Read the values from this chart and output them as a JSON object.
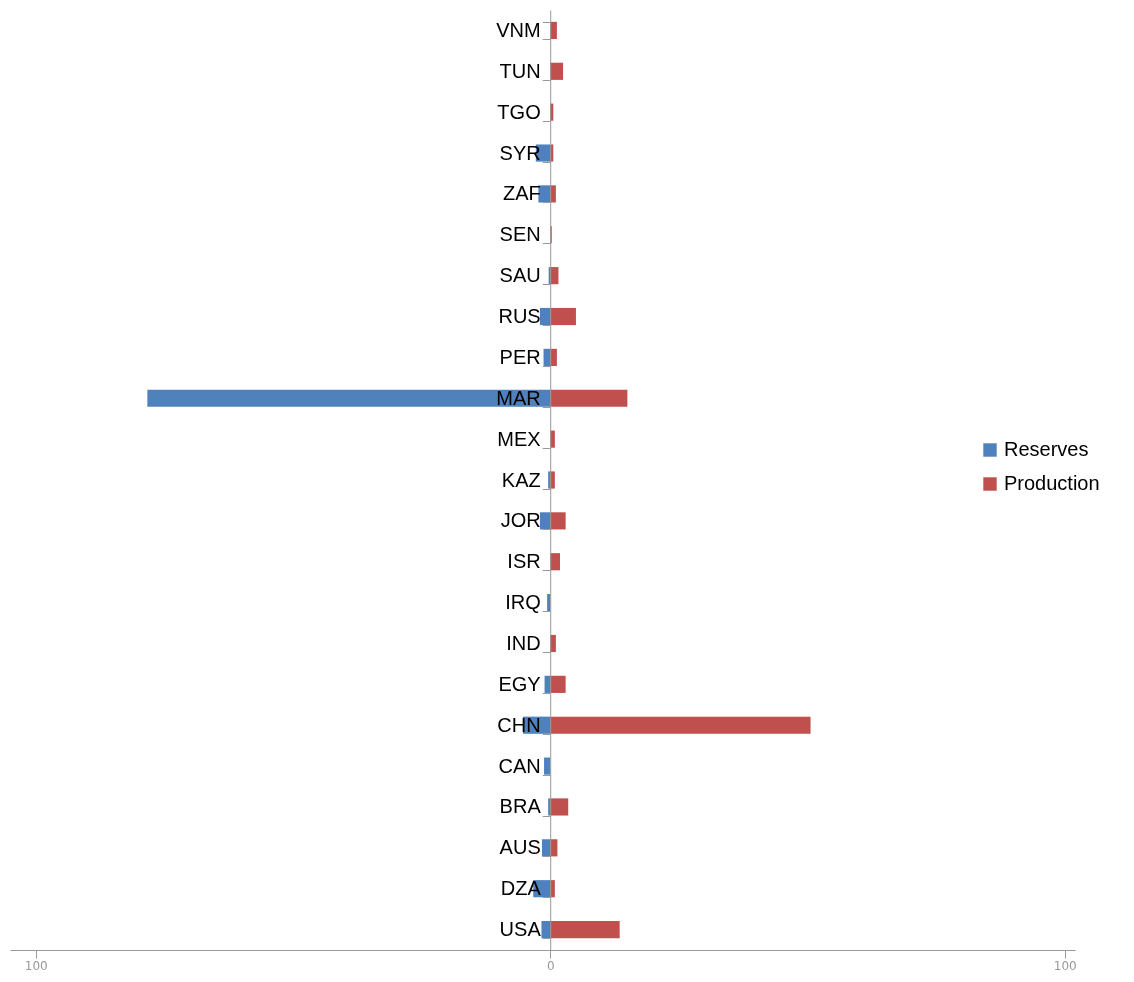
{
  "chart_data": {
    "type": "bar",
    "orientation": "horizontal",
    "categories": [
      "VNM",
      "TUN",
      "TGO",
      "SYR",
      "ZAF",
      "SEN",
      "SAU",
      "RUS",
      "PER",
      "MAR",
      "MEX",
      "KAZ",
      "JOR",
      "ISR",
      "IRQ",
      "IND",
      "EGY",
      "CHN",
      "CAN",
      "BRA",
      "AUS",
      "DZA",
      "USA"
    ],
    "series": [
      {
        "name": "Reserves",
        "color": "#4f81bd",
        "values": [
          0,
          0,
          0,
          -2.8,
          -2.3,
          0,
          -0.3,
          -2.0,
          -1.3,
          -78.3,
          0,
          -0.4,
          -2.0,
          0,
          -0.6,
          0,
          -1.1,
          -5.3,
          -1.2,
          -0.4,
          -1.6,
          -3.3,
          -1.7
        ]
      },
      {
        "name": "Production",
        "color": "#c0504d",
        "values": [
          1.3,
          2.5,
          0.6,
          0.6,
          1.1,
          0.3,
          1.6,
          5.0,
          1.3,
          15.0,
          0.9,
          0.9,
          3.0,
          1.9,
          0,
          1.1,
          3.0,
          50.6,
          0,
          3.5,
          1.4,
          0.9,
          13.5
        ]
      }
    ],
    "xlim": [
      -105,
      102
    ],
    "xticks": [
      {
        "value": -100,
        "label": "100"
      },
      0,
      100
    ],
    "grid": false,
    "legend": "right",
    "stacked": true
  }
}
